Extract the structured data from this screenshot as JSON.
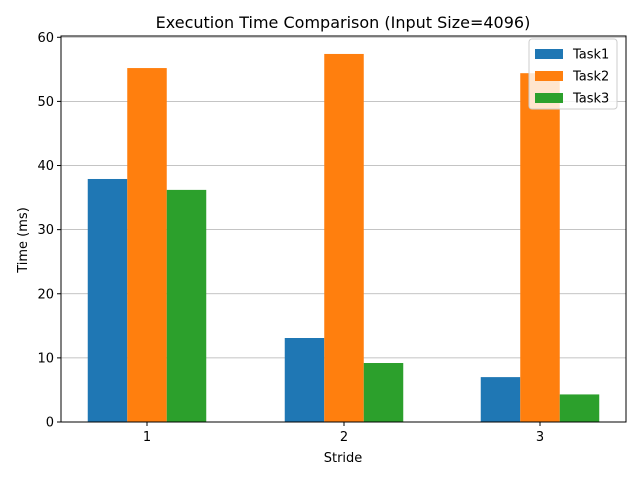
{
  "chart_data": {
    "type": "bar",
    "title": "Execution Time Comparison (Input Size=4096)",
    "xlabel": "Stride",
    "ylabel": "Time (ms)",
    "categories": [
      "1",
      "2",
      "3"
    ],
    "series": [
      {
        "name": "Task1",
        "color": "#1f77b4",
        "values": [
          37.9,
          13.1,
          7.0
        ]
      },
      {
        "name": "Task2",
        "color": "#ff7f0e",
        "values": [
          55.2,
          57.4,
          54.4
        ]
      },
      {
        "name": "Task3",
        "color": "#2ca02c",
        "values": [
          36.2,
          9.2,
          4.3
        ]
      }
    ],
    "yticks": [
      "0",
      "10",
      "20",
      "30",
      "40",
      "50",
      "60"
    ],
    "ylim": [
      0,
      60.2
    ],
    "grid": "y",
    "legend_position": "top-right"
  }
}
